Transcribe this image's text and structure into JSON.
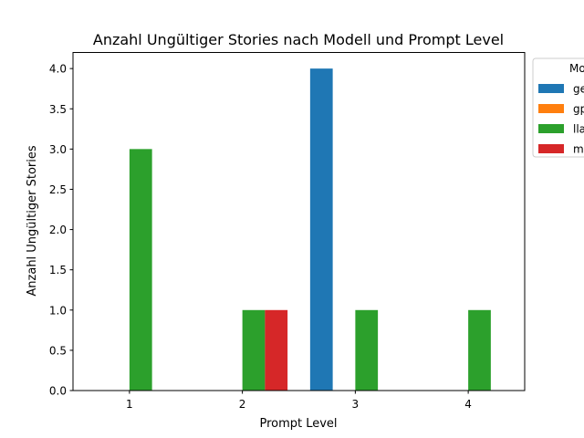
{
  "chart_data": {
    "type": "bar",
    "title": "Anzahl Ungültiger Stories nach Modell und Prompt Level",
    "xlabel": "Prompt Level",
    "ylabel": "Anzahl Ungültiger Stories",
    "categories": [
      "1",
      "2",
      "3",
      "4"
    ],
    "ylim": [
      0,
      4.2
    ],
    "yticks": [
      "0.0",
      "0.5",
      "1.0",
      "1.5",
      "2.0",
      "2.5",
      "3.0",
      "3.5",
      "4.0"
    ],
    "grid": false,
    "legend": {
      "title": "Mo",
      "placement": "outside-top-right"
    },
    "series": [
      {
        "name": "ge",
        "color": "#1f77b4",
        "values": [
          0,
          0,
          4,
          0
        ]
      },
      {
        "name": "gp",
        "color": "#ff7f0e",
        "values": [
          0,
          0,
          0,
          0
        ]
      },
      {
        "name": "lla",
        "color": "#2ca02c",
        "values": [
          3,
          1,
          1,
          1
        ]
      },
      {
        "name": "m",
        "color": "#d62728",
        "values": [
          0,
          1,
          0,
          0
        ]
      }
    ]
  }
}
